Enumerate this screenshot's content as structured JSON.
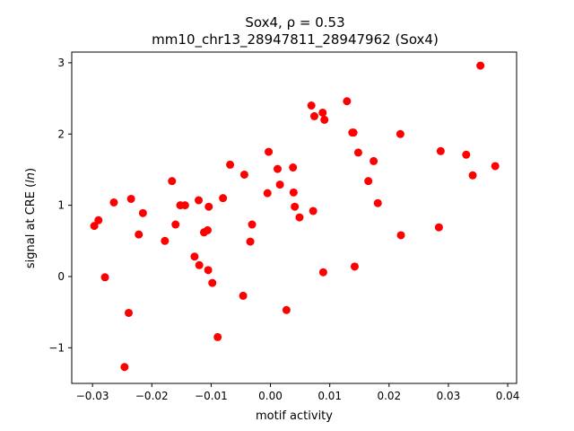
{
  "chart_data": {
    "type": "scatter",
    "title_line1": "Sox4, ρ = 0.53",
    "title_line2": "mm10_chr13_28947811_28947962 (Sox4)",
    "xlabel": "motif activity",
    "ylabel": "signal at CRE (ln)",
    "xlim": [
      -0.0335,
      0.0415
    ],
    "ylim": [
      -1.5,
      3.15
    ],
    "xticks": [
      -0.03,
      -0.02,
      -0.01,
      0.0,
      0.01,
      0.02,
      0.03,
      0.04
    ],
    "xtick_labels": [
      "−0.03",
      "−0.02",
      "−0.01",
      "0.00",
      "0.01",
      "0.02",
      "0.03",
      "0.04"
    ],
    "yticks": [
      -1,
      0,
      1,
      2,
      3
    ],
    "ytick_labels": [
      "−1",
      "0",
      "1",
      "2",
      "3"
    ],
    "marker_color": "#ff0000",
    "grid": false,
    "points": [
      [
        -0.0297,
        0.71
      ],
      [
        -0.029,
        0.79
      ],
      [
        -0.0279,
        -0.01
      ],
      [
        -0.0264,
        1.04
      ],
      [
        -0.0246,
        -1.27
      ],
      [
        -0.0239,
        -0.51
      ],
      [
        -0.0235,
        1.09
      ],
      [
        -0.0222,
        0.59
      ],
      [
        -0.0215,
        0.89
      ],
      [
        -0.0178,
        0.5
      ],
      [
        -0.0166,
        1.34
      ],
      [
        -0.016,
        0.73
      ],
      [
        -0.0152,
        1.0
      ],
      [
        -0.0144,
        1.0
      ],
      [
        -0.0128,
        0.28
      ],
      [
        -0.0121,
        1.07
      ],
      [
        -0.012,
        0.16
      ],
      [
        -0.0112,
        0.62
      ],
      [
        -0.0106,
        0.65
      ],
      [
        -0.0105,
        0.09
      ],
      [
        -0.0104,
        0.98
      ],
      [
        -0.0098,
        -0.09
      ],
      [
        -0.0089,
        -0.85
      ],
      [
        -0.008,
        1.1
      ],
      [
        -0.0068,
        1.57
      ],
      [
        -0.0046,
        -0.27
      ],
      [
        -0.0044,
        1.43
      ],
      [
        -0.0034,
        0.49
      ],
      [
        -0.0031,
        0.73
      ],
      [
        -0.0005,
        1.17
      ],
      [
        -0.0003,
        1.75
      ],
      [
        0.0012,
        1.51
      ],
      [
        0.0016,
        1.29
      ],
      [
        0.0027,
        -0.47
      ],
      [
        0.0038,
        1.53
      ],
      [
        0.0039,
        1.18
      ],
      [
        0.0041,
        0.98
      ],
      [
        0.0049,
        0.83
      ],
      [
        0.0069,
        2.4
      ],
      [
        0.0072,
        0.92
      ],
      [
        0.0074,
        2.25
      ],
      [
        0.0088,
        2.3
      ],
      [
        0.0089,
        0.06
      ],
      [
        0.0091,
        2.2
      ],
      [
        0.0129,
        2.46
      ],
      [
        0.0138,
        2.02
      ],
      [
        0.014,
        2.02
      ],
      [
        0.0142,
        0.14
      ],
      [
        0.0148,
        1.74
      ],
      [
        0.0165,
        1.34
      ],
      [
        0.0174,
        1.62
      ],
      [
        0.0181,
        1.03
      ],
      [
        0.0219,
        2.0
      ],
      [
        0.022,
        0.58
      ],
      [
        0.0284,
        0.69
      ],
      [
        0.0287,
        1.76
      ],
      [
        0.033,
        1.71
      ],
      [
        0.0341,
        1.42
      ],
      [
        0.0354,
        2.96
      ],
      [
        0.0379,
        1.55
      ]
    ]
  }
}
